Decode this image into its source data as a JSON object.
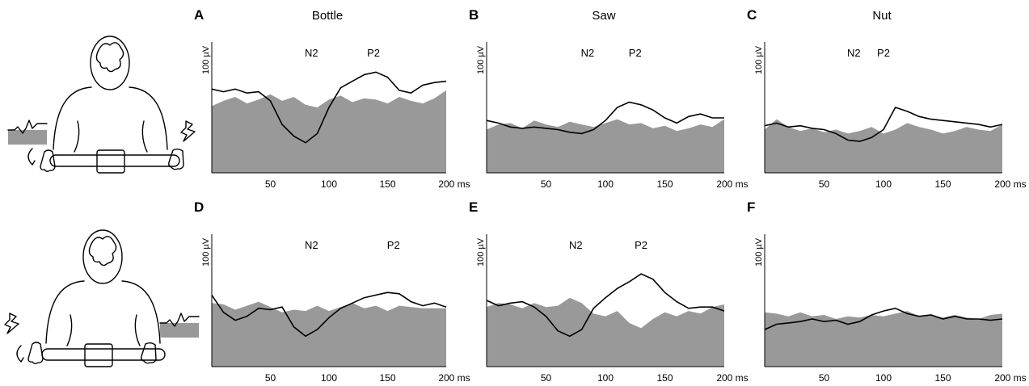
{
  "chart_data": [
    {
      "type": "area",
      "panel": "A",
      "title": "Bottle",
      "ylabel": "100 µV",
      "xlabel": "ms",
      "x_ticks": [
        50,
        100,
        150,
        200
      ],
      "xlim": [
        0,
        200
      ],
      "ylim": [
        0,
        100
      ],
      "annotations": [
        {
          "text": "N2",
          "x": 85
        },
        {
          "text": "P2",
          "x": 138
        }
      ],
      "series": [
        {
          "kind": "area",
          "x": [
            0,
            10,
            20,
            30,
            40,
            50,
            60,
            70,
            80,
            90,
            100,
            110,
            120,
            130,
            140,
            150,
            160,
            170,
            180,
            190,
            200
          ],
          "y": [
            51,
            55,
            58,
            53,
            56,
            60,
            55,
            58,
            52,
            50,
            56,
            59,
            54,
            57,
            56,
            53,
            58,
            55,
            53,
            57,
            63
          ]
        },
        {
          "kind": "line",
          "x": [
            0,
            10,
            20,
            30,
            40,
            50,
            60,
            70,
            80,
            90,
            100,
            110,
            120,
            130,
            140,
            150,
            160,
            170,
            180,
            190,
            200
          ],
          "y": [
            64,
            62,
            64,
            61,
            62,
            55,
            37,
            28,
            23,
            30,
            50,
            65,
            70,
            75,
            77,
            73,
            63,
            61,
            67,
            69,
            70
          ]
        }
      ]
    },
    {
      "type": "area",
      "panel": "B",
      "title": "Saw",
      "ylabel": "100 µV",
      "xlabel": "ms",
      "x_ticks": [
        50,
        100,
        150,
        200
      ],
      "xlim": [
        0,
        200
      ],
      "ylim": [
        0,
        100
      ],
      "annotations": [
        {
          "text": "N2",
          "x": 85
        },
        {
          "text": "P2",
          "x": 125
        }
      ],
      "series": [
        {
          "kind": "area",
          "x": [
            0,
            10,
            20,
            30,
            40,
            50,
            60,
            70,
            80,
            90,
            100,
            110,
            120,
            130,
            140,
            150,
            160,
            170,
            180,
            190,
            200
          ],
          "y": [
            33,
            37,
            38,
            34,
            40,
            37,
            35,
            39,
            37,
            35,
            38,
            41,
            37,
            38,
            34,
            36,
            32,
            34,
            37,
            35,
            41
          ]
        },
        {
          "kind": "line",
          "x": [
            0,
            10,
            20,
            30,
            40,
            50,
            60,
            70,
            80,
            90,
            100,
            110,
            120,
            130,
            140,
            150,
            160,
            170,
            180,
            190,
            200
          ],
          "y": [
            40,
            38,
            35,
            34,
            35,
            34,
            33,
            31,
            30,
            33,
            40,
            50,
            54,
            52,
            48,
            42,
            38,
            43,
            45,
            42,
            42
          ]
        }
      ]
    },
    {
      "type": "area",
      "panel": "C",
      "title": "Nut",
      "ylabel": "100 µV",
      "xlabel": "ms",
      "x_ticks": [
        50,
        100,
        150,
        200
      ],
      "xlim": [
        0,
        200
      ],
      "ylim": [
        0,
        100
      ],
      "annotations": [
        {
          "text": "N2",
          "x": 75
        },
        {
          "text": "P2",
          "x": 100
        }
      ],
      "series": [
        {
          "kind": "area",
          "x": [
            0,
            10,
            20,
            30,
            40,
            50,
            60,
            70,
            80,
            90,
            100,
            110,
            120,
            130,
            140,
            150,
            160,
            170,
            180,
            190,
            200
          ],
          "y": [
            33,
            41,
            35,
            32,
            34,
            31,
            33,
            30,
            32,
            35,
            30,
            33,
            38,
            35,
            33,
            30,
            32,
            35,
            33,
            32,
            37
          ]
        },
        {
          "kind": "line",
          "x": [
            0,
            10,
            20,
            30,
            40,
            50,
            60,
            70,
            80,
            90,
            100,
            110,
            120,
            130,
            140,
            150,
            160,
            170,
            180,
            190,
            200
          ],
          "y": [
            36,
            38,
            35,
            36,
            34,
            33,
            30,
            25,
            24,
            27,
            33,
            50,
            47,
            43,
            41,
            40,
            39,
            38,
            37,
            35,
            37
          ]
        }
      ]
    },
    {
      "type": "area",
      "panel": "D",
      "title": "",
      "ylabel": "100 µV",
      "xlabel": "ms",
      "x_ticks": [
        50,
        100,
        150,
        200
      ],
      "xlim": [
        0,
        200
      ],
      "ylim": [
        0,
        100
      ],
      "annotations": [
        {
          "text": "N2",
          "x": 85
        },
        {
          "text": "P2",
          "x": 155
        }
      ],
      "series": [
        {
          "kind": "area",
          "x": [
            0,
            10,
            20,
            30,
            40,
            50,
            60,
            70,
            80,
            90,
            100,
            110,
            120,
            130,
            140,
            150,
            160,
            170,
            180,
            190,
            200
          ],
          "y": [
            48,
            47,
            43,
            46,
            49,
            45,
            41,
            43,
            42,
            46,
            42,
            45,
            48,
            44,
            46,
            42,
            46,
            45,
            44,
            44,
            44
          ]
        },
        {
          "kind": "line",
          "x": [
            0,
            10,
            20,
            30,
            40,
            50,
            60,
            70,
            80,
            90,
            100,
            110,
            120,
            130,
            140,
            150,
            160,
            170,
            180,
            190,
            200
          ],
          "y": [
            54,
            41,
            35,
            38,
            44,
            43,
            45,
            30,
            23,
            28,
            37,
            44,
            48,
            52,
            54,
            56,
            55,
            49,
            46,
            48,
            45
          ]
        }
      ]
    },
    {
      "type": "area",
      "panel": "E",
      "title": "",
      "ylabel": "100 µV",
      "xlabel": "ms",
      "x_ticks": [
        50,
        100,
        150,
        200
      ],
      "xlim": [
        0,
        200
      ],
      "ylim": [
        0,
        100
      ],
      "annotations": [
        {
          "text": "N2",
          "x": 75
        },
        {
          "text": "P2",
          "x": 130
        }
      ],
      "series": [
        {
          "kind": "area",
          "x": [
            0,
            10,
            20,
            30,
            40,
            50,
            60,
            70,
            80,
            90,
            100,
            110,
            120,
            130,
            140,
            150,
            160,
            170,
            180,
            190,
            200
          ],
          "y": [
            45,
            48,
            47,
            44,
            48,
            45,
            46,
            52,
            48,
            40,
            38,
            42,
            33,
            29,
            36,
            41,
            38,
            42,
            40,
            45,
            47
          ]
        },
        {
          "kind": "line",
          "x": [
            0,
            10,
            20,
            30,
            40,
            50,
            60,
            70,
            80,
            90,
            100,
            110,
            120,
            130,
            140,
            150,
            160,
            170,
            180,
            190,
            200
          ],
          "y": [
            50,
            46,
            48,
            49,
            45,
            38,
            27,
            23,
            28,
            44,
            52,
            59,
            64,
            70,
            66,
            56,
            49,
            44,
            45,
            45,
            42
          ]
        }
      ]
    },
    {
      "type": "area",
      "panel": "F",
      "title": "",
      "ylabel": "100 µV",
      "xlabel": "ms",
      "x_ticks": [
        50,
        100,
        150,
        200
      ],
      "xlim": [
        0,
        200
      ],
      "ylim": [
        0,
        100
      ],
      "annotations": [],
      "series": [
        {
          "kind": "area",
          "x": [
            0,
            10,
            20,
            30,
            40,
            50,
            60,
            70,
            80,
            90,
            100,
            110,
            120,
            130,
            140,
            150,
            160,
            170,
            180,
            190,
            200
          ],
          "y": [
            41,
            40,
            38,
            41,
            38,
            39,
            36,
            38,
            37,
            39,
            38,
            40,
            42,
            38,
            39,
            37,
            39,
            37,
            36,
            39,
            40
          ]
        },
        {
          "kind": "line",
          "x": [
            0,
            10,
            20,
            30,
            40,
            50,
            60,
            70,
            80,
            90,
            100,
            110,
            120,
            130,
            140,
            150,
            160,
            170,
            180,
            190,
            200
          ],
          "y": [
            28,
            32,
            33,
            34,
            36,
            34,
            35,
            32,
            34,
            39,
            42,
            44,
            40,
            38,
            39,
            36,
            38,
            36,
            36,
            35,
            36
          ]
        }
      ]
    }
  ]
}
